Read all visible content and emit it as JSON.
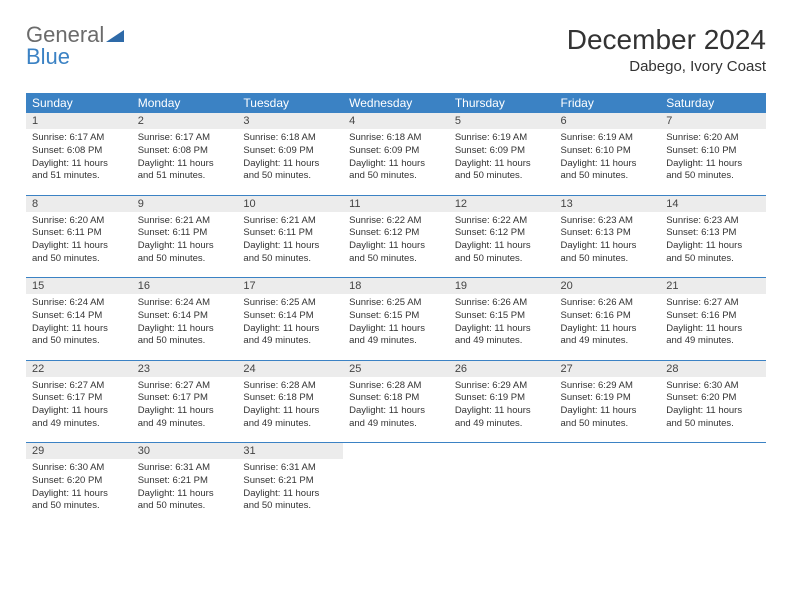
{
  "logo": {
    "line1": "General",
    "line2": "Blue"
  },
  "title": {
    "month": "December 2024",
    "location": "Dabego, Ivory Coast"
  },
  "colors": {
    "header_bg": "#3b82c4",
    "header_text": "#ffffff",
    "daynum_bg": "#ececec",
    "row_divider": "#3b82c4",
    "text": "#333333",
    "logo_gray": "#6b6b6b",
    "logo_blue": "#3b82c4"
  },
  "day_headers": [
    "Sunday",
    "Monday",
    "Tuesday",
    "Wednesday",
    "Thursday",
    "Friday",
    "Saturday"
  ],
  "weeks": [
    [
      {
        "n": "1",
        "sr": "6:17 AM",
        "ss": "6:08 PM",
        "dl": "11 hours and 51 minutes."
      },
      {
        "n": "2",
        "sr": "6:17 AM",
        "ss": "6:08 PM",
        "dl": "11 hours and 51 minutes."
      },
      {
        "n": "3",
        "sr": "6:18 AM",
        "ss": "6:09 PM",
        "dl": "11 hours and 50 minutes."
      },
      {
        "n": "4",
        "sr": "6:18 AM",
        "ss": "6:09 PM",
        "dl": "11 hours and 50 minutes."
      },
      {
        "n": "5",
        "sr": "6:19 AM",
        "ss": "6:09 PM",
        "dl": "11 hours and 50 minutes."
      },
      {
        "n": "6",
        "sr": "6:19 AM",
        "ss": "6:10 PM",
        "dl": "11 hours and 50 minutes."
      },
      {
        "n": "7",
        "sr": "6:20 AM",
        "ss": "6:10 PM",
        "dl": "11 hours and 50 minutes."
      }
    ],
    [
      {
        "n": "8",
        "sr": "6:20 AM",
        "ss": "6:11 PM",
        "dl": "11 hours and 50 minutes."
      },
      {
        "n": "9",
        "sr": "6:21 AM",
        "ss": "6:11 PM",
        "dl": "11 hours and 50 minutes."
      },
      {
        "n": "10",
        "sr": "6:21 AM",
        "ss": "6:11 PM",
        "dl": "11 hours and 50 minutes."
      },
      {
        "n": "11",
        "sr": "6:22 AM",
        "ss": "6:12 PM",
        "dl": "11 hours and 50 minutes."
      },
      {
        "n": "12",
        "sr": "6:22 AM",
        "ss": "6:12 PM",
        "dl": "11 hours and 50 minutes."
      },
      {
        "n": "13",
        "sr": "6:23 AM",
        "ss": "6:13 PM",
        "dl": "11 hours and 50 minutes."
      },
      {
        "n": "14",
        "sr": "6:23 AM",
        "ss": "6:13 PM",
        "dl": "11 hours and 50 minutes."
      }
    ],
    [
      {
        "n": "15",
        "sr": "6:24 AM",
        "ss": "6:14 PM",
        "dl": "11 hours and 50 minutes."
      },
      {
        "n": "16",
        "sr": "6:24 AM",
        "ss": "6:14 PM",
        "dl": "11 hours and 50 minutes."
      },
      {
        "n": "17",
        "sr": "6:25 AM",
        "ss": "6:14 PM",
        "dl": "11 hours and 49 minutes."
      },
      {
        "n": "18",
        "sr": "6:25 AM",
        "ss": "6:15 PM",
        "dl": "11 hours and 49 minutes."
      },
      {
        "n": "19",
        "sr": "6:26 AM",
        "ss": "6:15 PM",
        "dl": "11 hours and 49 minutes."
      },
      {
        "n": "20",
        "sr": "6:26 AM",
        "ss": "6:16 PM",
        "dl": "11 hours and 49 minutes."
      },
      {
        "n": "21",
        "sr": "6:27 AM",
        "ss": "6:16 PM",
        "dl": "11 hours and 49 minutes."
      }
    ],
    [
      {
        "n": "22",
        "sr": "6:27 AM",
        "ss": "6:17 PM",
        "dl": "11 hours and 49 minutes."
      },
      {
        "n": "23",
        "sr": "6:27 AM",
        "ss": "6:17 PM",
        "dl": "11 hours and 49 minutes."
      },
      {
        "n": "24",
        "sr": "6:28 AM",
        "ss": "6:18 PM",
        "dl": "11 hours and 49 minutes."
      },
      {
        "n": "25",
        "sr": "6:28 AM",
        "ss": "6:18 PM",
        "dl": "11 hours and 49 minutes."
      },
      {
        "n": "26",
        "sr": "6:29 AM",
        "ss": "6:19 PM",
        "dl": "11 hours and 49 minutes."
      },
      {
        "n": "27",
        "sr": "6:29 AM",
        "ss": "6:19 PM",
        "dl": "11 hours and 50 minutes."
      },
      {
        "n": "28",
        "sr": "6:30 AM",
        "ss": "6:20 PM",
        "dl": "11 hours and 50 minutes."
      }
    ],
    [
      {
        "n": "29",
        "sr": "6:30 AM",
        "ss": "6:20 PM",
        "dl": "11 hours and 50 minutes."
      },
      {
        "n": "30",
        "sr": "6:31 AM",
        "ss": "6:21 PM",
        "dl": "11 hours and 50 minutes."
      },
      {
        "n": "31",
        "sr": "6:31 AM",
        "ss": "6:21 PM",
        "dl": "11 hours and 50 minutes."
      },
      null,
      null,
      null,
      null
    ]
  ],
  "labels": {
    "sunrise": "Sunrise:",
    "sunset": "Sunset:",
    "daylight": "Daylight:"
  }
}
